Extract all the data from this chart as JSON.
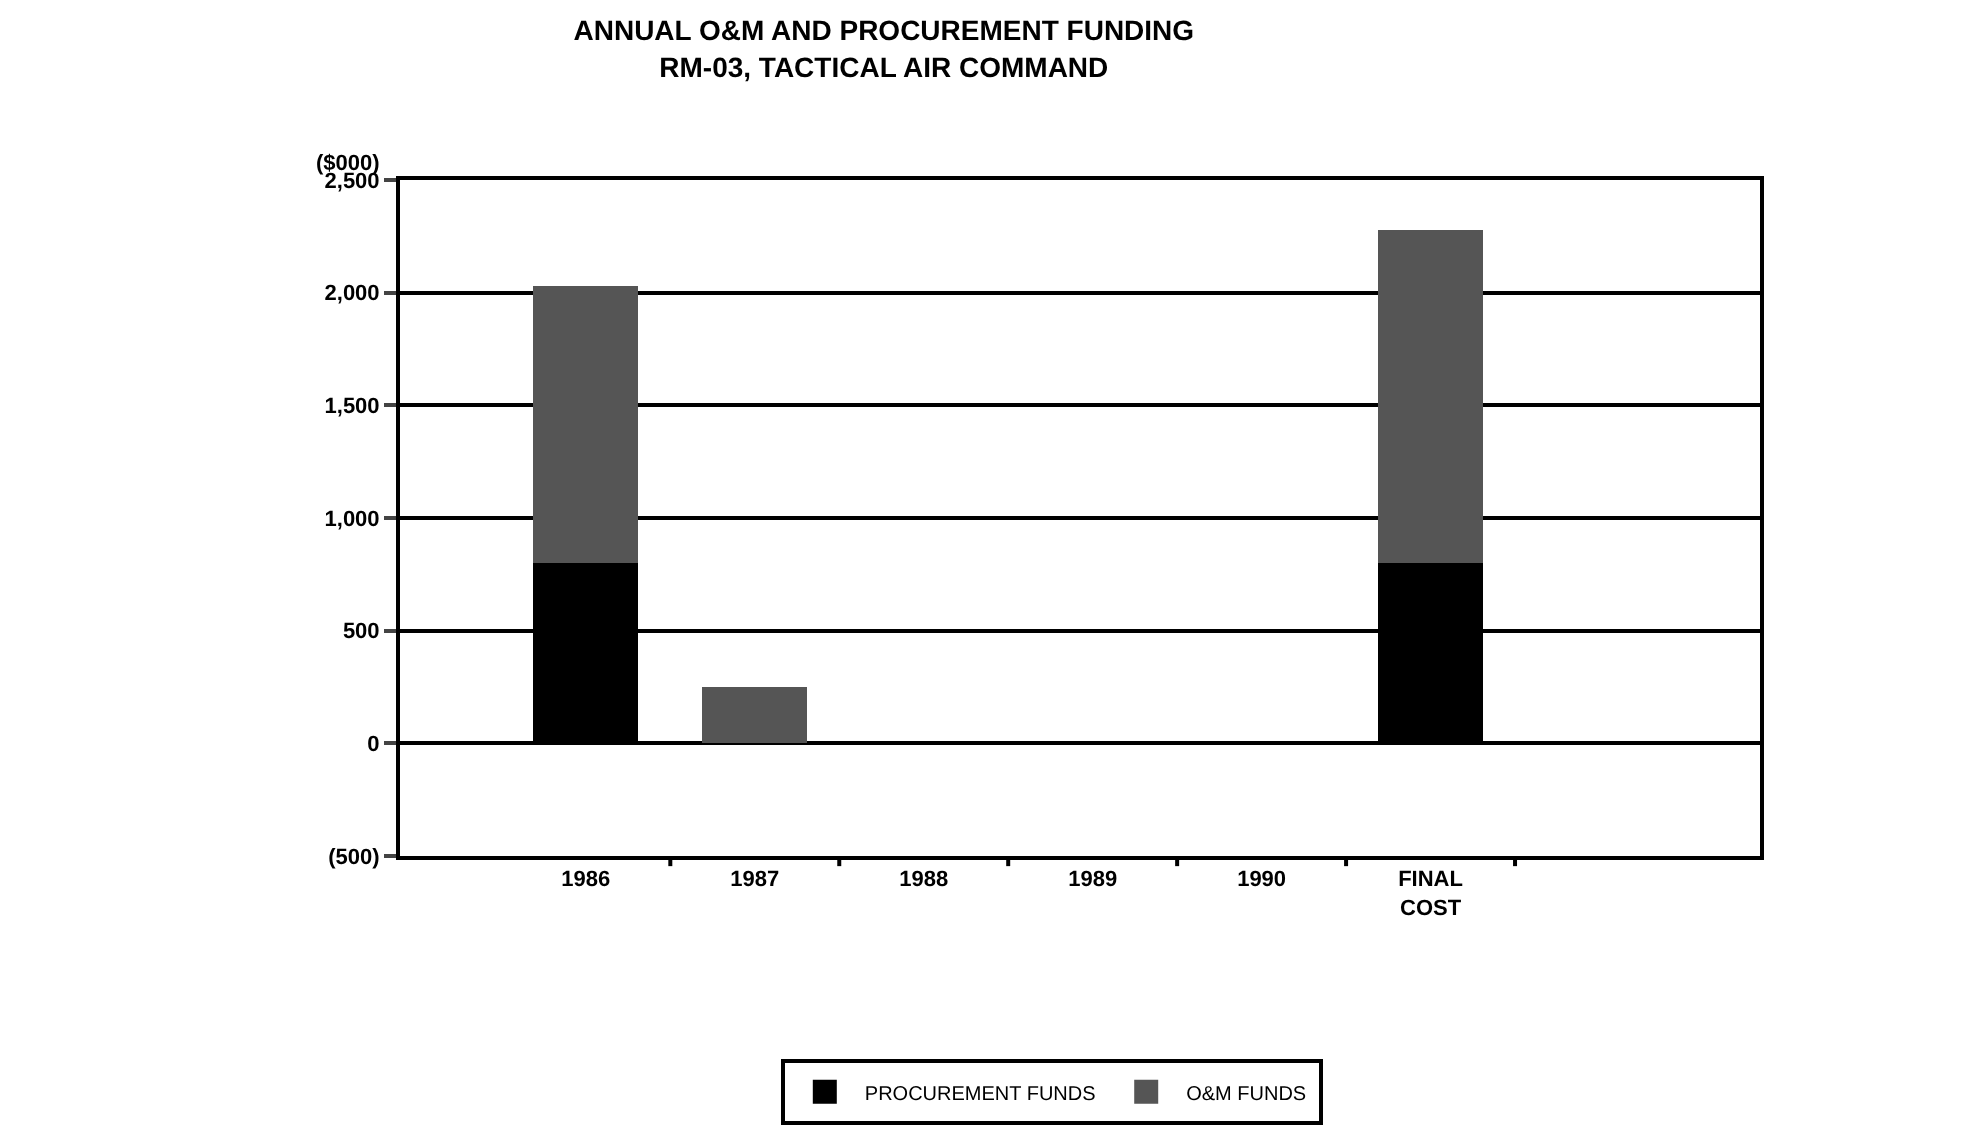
{
  "chart_data": {
    "type": "bar",
    "title": "ANNUAL O&M AND PROCUREMENT FUNDING",
    "subtitle": "RM-03, TACTICAL AIR COMMAND",
    "ylabel": "($000)",
    "categories": [
      "1986",
      "1987",
      "1988",
      "1989",
      "1990",
      "FINAL COST"
    ],
    "series": [
      {
        "name": "PROCUREMENT FUNDS",
        "color": "#000000",
        "values": [
          800,
          0,
          0,
          0,
          0,
          800
        ]
      },
      {
        "name": "O&M FUNDS",
        "color": "#555555",
        "values": [
          1230,
          250,
          0,
          0,
          0,
          1480
        ]
      }
    ],
    "stacked": true,
    "ylim": [
      -500,
      2500
    ],
    "yticks": [
      {
        "value": -500,
        "label": "(500)"
      },
      0,
      500,
      {
        "value": 1000,
        "label": "1,000"
      },
      {
        "value": 1500,
        "label": "1,500"
      },
      {
        "value": 2000,
        "label": "2,000"
      },
      {
        "value": 2500,
        "label": "2,500"
      }
    ],
    "grid": "y",
    "legend": "bottom"
  }
}
